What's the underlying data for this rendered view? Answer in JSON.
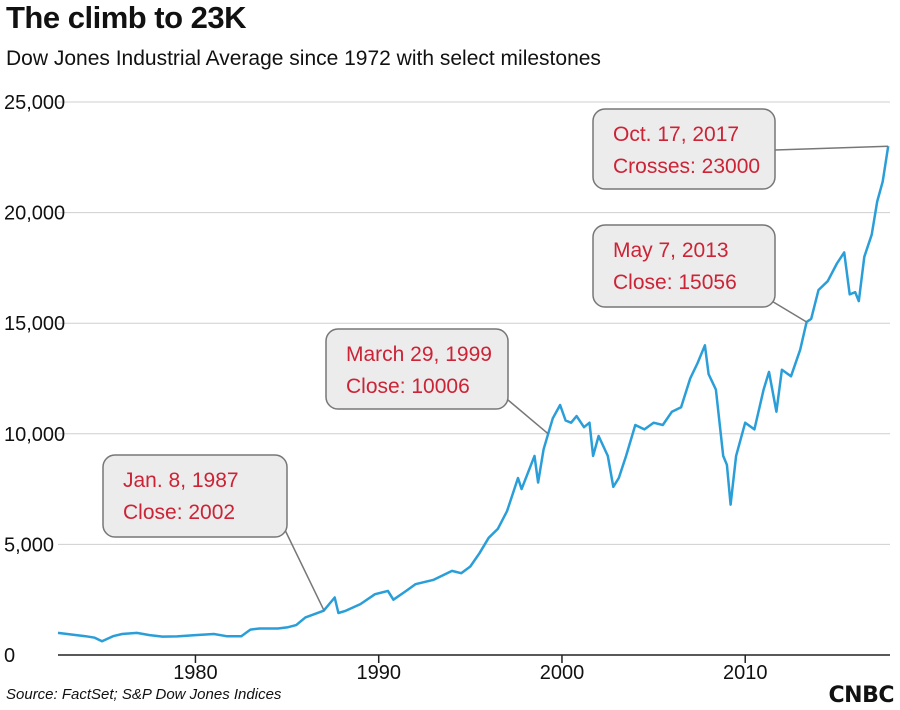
{
  "title": "The climb to 23K",
  "subtitle": "Dow Jones Industrial Average since 1972 with select milestones",
  "source": "Source: FactSet; S&P Dow Jones Indices",
  "brand": "CNBC",
  "colors": {
    "line": "#2a9ed8",
    "callout_text": "#cc2336",
    "callout_fill": "#ececec",
    "grid": "#cfcfcf"
  },
  "chart_data": {
    "type": "line",
    "title": "The climb to 23K",
    "subtitle": "Dow Jones Industrial Average since 1972 with select milestones",
    "xlabel": "",
    "ylabel": "",
    "xlim": [
      1972.5,
      2017.9
    ],
    "ylim": [
      0,
      25000
    ],
    "x_ticks": [
      1980,
      1990,
      2000,
      2010
    ],
    "y_ticks": [
      0,
      5000,
      10000,
      15000,
      20000,
      25000
    ],
    "y_tick_labels": [
      "0",
      "5,000",
      "10,000",
      "15,000",
      "20,000",
      "25,000"
    ],
    "grid": "horizontal",
    "series": [
      {
        "name": "",
        "x": [
          1972.5,
          1973.0,
          1973.5,
          1974.0,
          1974.5,
          1974.9,
          1975.5,
          1976.0,
          1976.8,
          1977.5,
          1978.2,
          1979.0,
          1980.0,
          1981.0,
          1981.7,
          1982.5,
          1983.0,
          1983.5,
          1984.5,
          1985.0,
          1985.5,
          1986.0,
          1986.5,
          1987.0,
          1987.6,
          1987.8,
          1988.2,
          1989.0,
          1989.8,
          1990.5,
          1990.8,
          1991.5,
          1992.0,
          1993.0,
          1994.0,
          1994.5,
          1995.0,
          1995.5,
          1996.0,
          1996.5,
          1997.0,
          1997.6,
          1997.8,
          1998.5,
          1998.7,
          1999.0,
          1999.25,
          1999.5,
          1999.9,
          2000.2,
          2000.5,
          2000.8,
          2001.2,
          2001.5,
          2001.7,
          2002.0,
          2002.5,
          2002.8,
          2003.1,
          2003.5,
          2004.0,
          2004.5,
          2005.0,
          2005.5,
          2006.0,
          2006.5,
          2007.0,
          2007.4,
          2007.8,
          2008.0,
          2008.4,
          2008.8,
          2009.0,
          2009.2,
          2009.5,
          2010.0,
          2010.5,
          2011.0,
          2011.3,
          2011.7,
          2012.0,
          2012.5,
          2013.0,
          2013.35,
          2013.6,
          2014.0,
          2014.5,
          2015.0,
          2015.4,
          2015.7,
          2016.0,
          2016.2,
          2016.5,
          2016.9,
          2017.2,
          2017.5,
          2017.8
        ],
        "y": [
          1000,
          950,
          900,
          850,
          780,
          620,
          850,
          950,
          1000,
          900,
          830,
          840,
          900,
          950,
          850,
          850,
          1150,
          1200,
          1200,
          1250,
          1350,
          1700,
          1850,
          2002,
          2600,
          1900,
          2000,
          2300,
          2750,
          2900,
          2500,
          2900,
          3200,
          3400,
          3800,
          3700,
          4000,
          4600,
          5300,
          5700,
          6500,
          8000,
          7500,
          9000,
          7800,
          9300,
          10006,
          10700,
          11300,
          10600,
          10500,
          10800,
          10300,
          10500,
          9000,
          9900,
          9000,
          7600,
          8000,
          9000,
          10400,
          10200,
          10500,
          10400,
          11000,
          11200,
          12500,
          13200,
          14000,
          12700,
          12000,
          9000,
          8600,
          6800,
          9000,
          10500,
          10200,
          12000,
          12800,
          11000,
          12900,
          12600,
          13800,
          15056,
          15200,
          16500,
          16900,
          17700,
          18200,
          16300,
          16400,
          16000,
          18000,
          19000,
          20500,
          21400,
          23000
        ]
      }
    ],
    "annotations": [
      {
        "date": "Jan. 8, 1987",
        "label": "Close: 2002",
        "x": 1987.02,
        "y": 2002
      },
      {
        "date": "March 29, 1999",
        "label": "Close: 10006",
        "x": 1999.24,
        "y": 10006
      },
      {
        "date": "May 7, 2013",
        "label": "Close: 15056",
        "x": 2013.35,
        "y": 15056
      },
      {
        "date": "Oct. 17, 2017",
        "label": "Crosses: 23000",
        "x": 2017.8,
        "y": 23000
      }
    ]
  }
}
